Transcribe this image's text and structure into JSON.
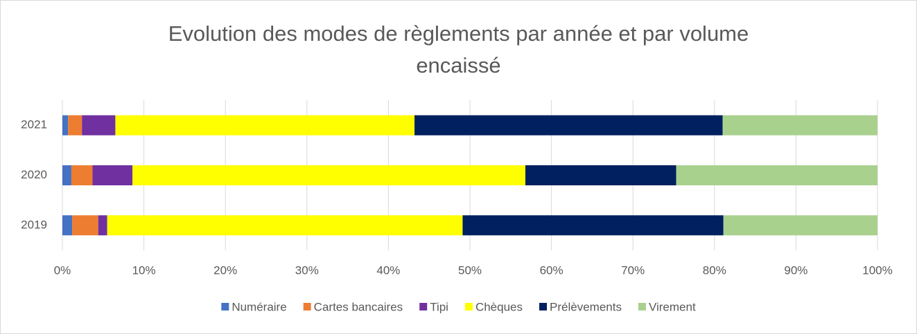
{
  "chart_data": {
    "type": "stacked_barh",
    "title": "Evolution des modes de règlements par année et par volume encaissé",
    "categories": [
      "2019",
      "2020",
      "2021"
    ],
    "series": [
      {
        "name": "Numéraire",
        "color": "#4472c4",
        "values": [
          1.2,
          1.1,
          0.7
        ]
      },
      {
        "name": "Cartes bancaires",
        "color": "#ed7d31",
        "values": [
          3.2,
          2.6,
          1.7
        ]
      },
      {
        "name": "Tipi",
        "color": "#7030a0",
        "values": [
          1.1,
          4.9,
          4.1
        ]
      },
      {
        "name": "Chèques",
        "color": "#ffff00",
        "values": [
          43.6,
          48.2,
          36.7
        ]
      },
      {
        "name": "Prélèvements",
        "color": "#002060",
        "values": [
          32.0,
          18.5,
          37.8
        ]
      },
      {
        "name": "Virement",
        "color": "#a9d18e",
        "values": [
          18.9,
          24.7,
          19.0
        ]
      }
    ],
    "xlim": [
      0,
      100
    ],
    "xticks": [
      {
        "value": 0,
        "label": "0%"
      },
      {
        "value": 10,
        "label": "10%"
      },
      {
        "value": 20,
        "label": "20%"
      },
      {
        "value": 30,
        "label": "30%"
      },
      {
        "value": 40,
        "label": "40%"
      },
      {
        "value": 50,
        "label": "50%"
      },
      {
        "value": 60,
        "label": "60%"
      },
      {
        "value": 70,
        "label": "70%"
      },
      {
        "value": 80,
        "label": "80%"
      },
      {
        "value": 90,
        "label": "90%"
      },
      {
        "value": 100,
        "label": "100%"
      }
    ],
    "grid": true,
    "legend": "bottom"
  }
}
